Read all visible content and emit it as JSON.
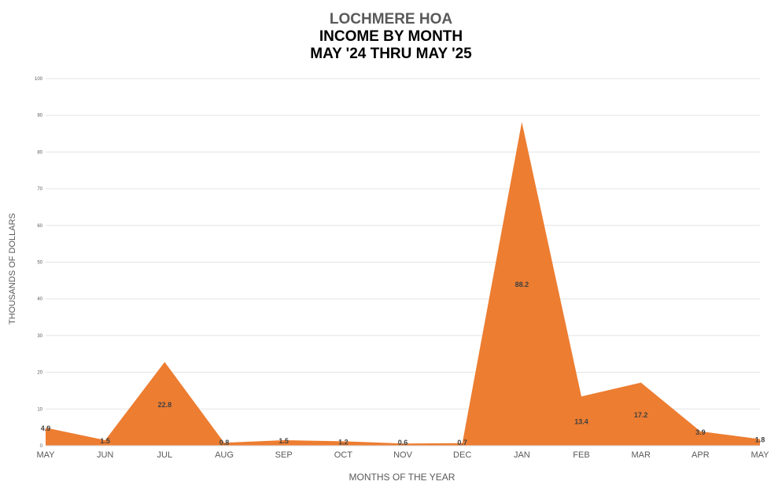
{
  "chart_data": {
    "type": "area",
    "title": [
      "LOCHMERE HOA",
      "INCOME BY MONTH",
      "MAY '24 THRU MAY '25"
    ],
    "xlabel": "MONTHS OF THE YEAR",
    "ylabel": "THOUSANDS OF DOLLARS",
    "categories": [
      "MAY",
      "JUN",
      "JUL",
      "AUG",
      "SEP",
      "OCT",
      "NOV",
      "DEC",
      "JAN",
      "FEB",
      "MAR",
      "APR",
      "MAY"
    ],
    "series": [
      {
        "values": [
          4.9,
          1.5,
          22.8,
          0.8,
          1.5,
          1.2,
          0.6,
          0.7,
          88.2,
          13.4,
          17.2,
          3.9,
          1.8
        ]
      }
    ],
    "ylim": [
      0,
      100
    ],
    "yticks": [
      0,
      10,
      20,
      30,
      40,
      50,
      60,
      70,
      80,
      90,
      100
    ],
    "grid": true,
    "legend": "none",
    "colors": {
      "area": "#ED7D31",
      "grid": "#E3E3E3",
      "axis_text": "#595959",
      "data_label": "#404040"
    }
  }
}
